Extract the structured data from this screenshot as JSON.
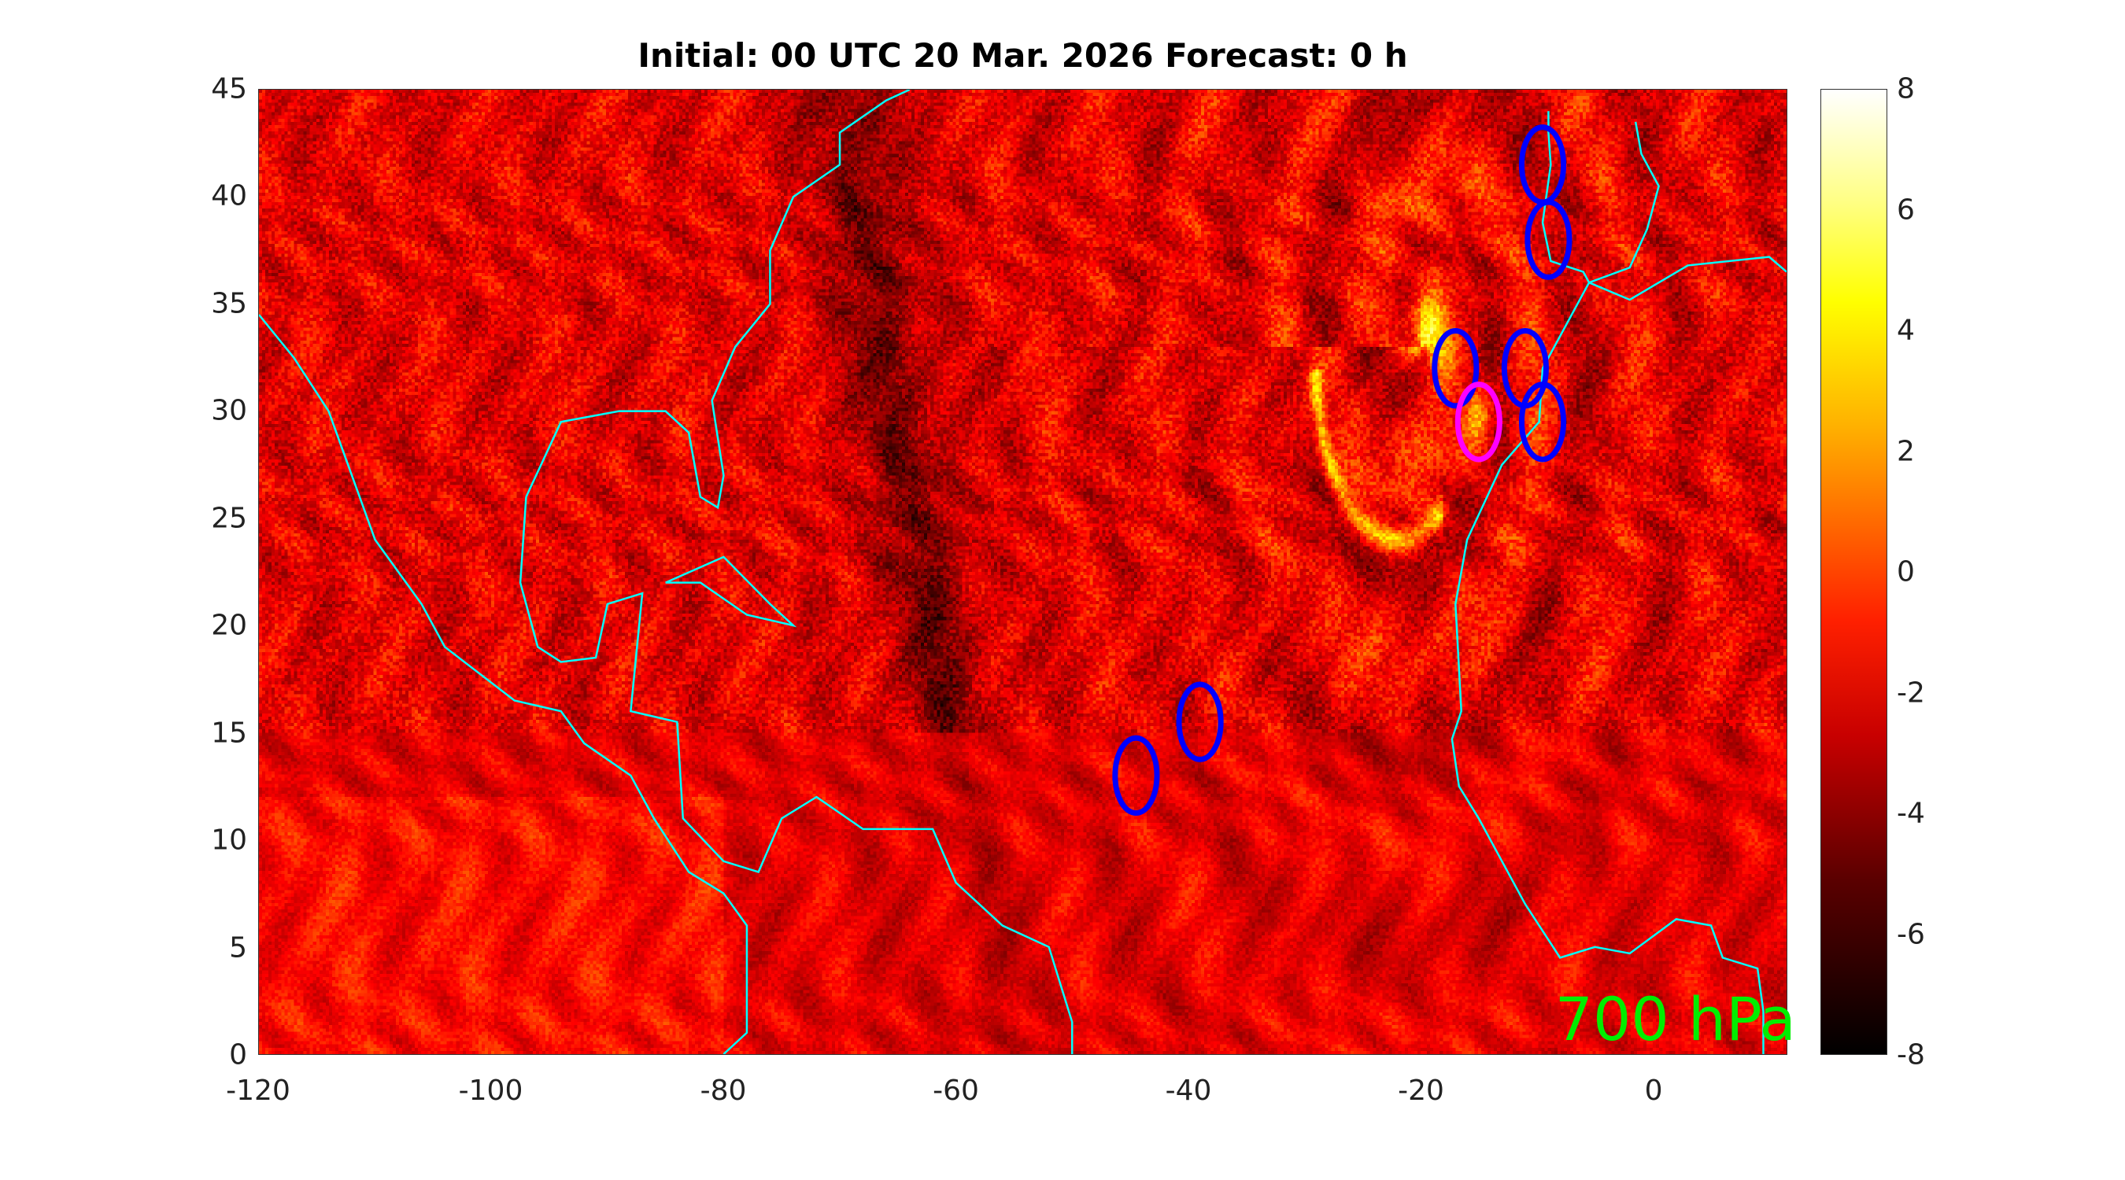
{
  "chart_data": {
    "type": "heatmap",
    "title": "Initial: 00 UTC 20 Mar. 2026 Forecast: 0 h",
    "annotation": "700 hPa",
    "xlim": [
      -120,
      11.5
    ],
    "ylim": [
      0,
      45
    ],
    "x_ticks": [
      "-120",
      "-100",
      "-80",
      "-60",
      "-40",
      "-20",
      "0"
    ],
    "x_tick_values": [
      -120,
      -100,
      -80,
      -60,
      -40,
      -20,
      0
    ],
    "y_ticks": [
      "0",
      "5",
      "10",
      "15",
      "20",
      "25",
      "30",
      "35",
      "40",
      "45"
    ],
    "y_tick_values": [
      0,
      5,
      10,
      15,
      20,
      25,
      30,
      35,
      40,
      45
    ],
    "colorbar": {
      "range": [
        -8,
        8
      ],
      "ticks": [
        "8",
        "6",
        "4",
        "2",
        "0",
        "-2",
        "-4",
        "-6",
        "-8"
      ],
      "tick_values": [
        8,
        6,
        4,
        2,
        0,
        -2,
        -4,
        -6,
        -8
      ],
      "colormap": "hot"
    },
    "coastline_color": "#00ffff",
    "markers": [
      {
        "lon": -44.5,
        "lat": 13,
        "color": "#0000ff"
      },
      {
        "lon": -39,
        "lat": 15.5,
        "color": "#0000ff"
      },
      {
        "lon": -17,
        "lat": 32,
        "color": "#0000ff"
      },
      {
        "lon": -11,
        "lat": 32,
        "color": "#0000ff"
      },
      {
        "lon": -9.5,
        "lat": 29.5,
        "color": "#0000ff"
      },
      {
        "lon": -9,
        "lat": 38,
        "color": "#0000ff"
      },
      {
        "lon": -9.5,
        "lat": 41.5,
        "color": "#0000ff"
      },
      {
        "lon": -15,
        "lat": 29.5,
        "color": "#ff00ff"
      }
    ]
  }
}
